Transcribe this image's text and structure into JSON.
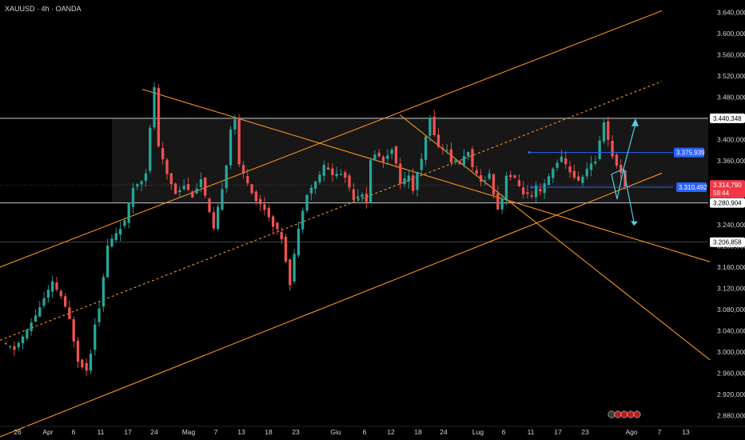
{
  "header": {
    "title": "XAUUSD · 4h · OANDA"
  },
  "colors": {
    "background": "#000000",
    "up": "#26a69a",
    "down": "#ef5350",
    "trendline": "#f7931e",
    "level": "#d1d4dc",
    "blue": "#2962ff",
    "arrow": "#4dd0e1",
    "range_box": "#1a1a1a",
    "price_tag": "#f23645"
  },
  "chart_data": {
    "type": "candlestick",
    "symbol": "XAUUSD",
    "timeframe": "4h",
    "source": "OANDA",
    "ylim": [
      2860,
      3660
    ],
    "y_ticks": [
      "3.640,000",
      "3.600,000",
      "3.560,000",
      "3.520,000",
      "3.480,000",
      "3.400,000",
      "3.360,000",
      "3.240,000",
      "3.200,000",
      "3.160,000",
      "3.120,000",
      "3.080,000",
      "3.040,000",
      "3.000,000",
      "2.960,000",
      "2.920,000",
      "2.880,000"
    ],
    "x_ticks": [
      "26",
      "Apr",
      "6",
      "11",
      "17",
      "24",
      "Mag",
      "7",
      "13",
      "18",
      "23",
      "Giu",
      "6",
      "12",
      "18",
      "24",
      "Lug",
      "6",
      "11",
      "17",
      "23",
      "Ago",
      "7",
      "13"
    ],
    "price_path": [
      [
        0,
        3015
      ],
      [
        3,
        3005
      ],
      [
        6,
        3040
      ],
      [
        9,
        3085
      ],
      [
        12,
        3130
      ],
      [
        14,
        3105
      ],
      [
        16,
        3060
      ],
      [
        17.5,
        2985
      ],
      [
        19,
        2965
      ],
      [
        20,
        3000
      ],
      [
        21,
        3055
      ],
      [
        22,
        3085
      ],
      [
        23,
        3140
      ],
      [
        24,
        3200
      ],
      [
        26,
        3225
      ],
      [
        28,
        3245
      ],
      [
        30,
        3310
      ],
      [
        32,
        3325
      ],
      [
        33.2,
        3340
      ],
      [
        34,
        3420
      ],
      [
        35.2,
        3500
      ],
      [
        36.5,
        3385
      ],
      [
        38,
        3335
      ],
      [
        40,
        3300
      ],
      [
        41.5,
        3315
      ],
      [
        43,
        3295
      ],
      [
        44.5,
        3325
      ],
      [
        46,
        3260
      ],
      [
        47,
        3230
      ],
      [
        48,
        3270
      ],
      [
        49,
        3310
      ],
      [
        50,
        3355
      ],
      [
        51,
        3420
      ],
      [
        52.2,
        3440
      ],
      [
        53.5,
        3350
      ],
      [
        55,
        3320
      ],
      [
        56.5,
        3285
      ],
      [
        58,
        3270
      ],
      [
        59.5,
        3240
      ],
      [
        61,
        3215
      ],
      [
        62.8,
        3130
      ],
      [
        64,
        3185
      ],
      [
        65,
        3230
      ],
      [
        66,
        3270
      ],
      [
        67,
        3300
      ],
      [
        68.5,
        3320
      ],
      [
        70,
        3350
      ],
      [
        71.5,
        3335
      ],
      [
        73,
        3335
      ],
      [
        74,
        3330
      ],
      [
        75.5,
        3290
      ],
      [
        77,
        3300
      ],
      [
        78,
        3280
      ],
      [
        79,
        3360
      ],
      [
        80,
        3375
      ],
      [
        81.5,
        3360
      ],
      [
        83,
        3385
      ],
      [
        84.5,
        3320
      ],
      [
        86,
        3330
      ],
      [
        87,
        3305
      ],
      [
        88,
        3340
      ],
      [
        89,
        3360
      ],
      [
        90,
        3405
      ],
      [
        91,
        3440
      ],
      [
        92.5,
        3385
      ],
      [
        94,
        3380
      ],
      [
        95,
        3360
      ],
      [
        96.5,
        3355
      ],
      [
        98,
        3380
      ],
      [
        99,
        3345
      ],
      [
        100.5,
        3320
      ],
      [
        102,
        3335
      ],
      [
        103,
        3300
      ],
      [
        104,
        3270
      ],
      [
        105.3,
        3290
      ],
      [
        106.5,
        3335
      ],
      [
        108,
        3325
      ],
      [
        109.5,
        3300
      ],
      [
        111,
        3290
      ],
      [
        112,
        3310
      ],
      [
        113,
        3300
      ],
      [
        114.5,
        3330
      ],
      [
        116,
        3360
      ],
      [
        117,
        3365
      ],
      [
        118.5,
        3340
      ],
      [
        120,
        3320
      ],
      [
        121.5,
        3345
      ],
      [
        123,
        3360
      ],
      [
        124,
        3400
      ],
      [
        125,
        3435
      ],
      [
        126.2,
        3400
      ],
      [
        127,
        3370
      ],
      [
        128,
        3350
      ],
      [
        129,
        3340
      ],
      [
        130,
        3315
      ]
    ],
    "levels": [
      {
        "label": "3.440,348",
        "value": 3440.348,
        "color": "#d1d4dc"
      },
      {
        "label": "3.280,904",
        "value": 3280.904,
        "color": "#d1d4dc"
      },
      {
        "label": "3.206,858",
        "value": 3206.858,
        "color": "#d1d4dc"
      },
      {
        "label": "3.375,939",
        "value": 3375.939,
        "color": "#2962ff"
      },
      {
        "label": "3.310,492",
        "value": 3310.492,
        "color": "#2962ff"
      }
    ],
    "current_price": {
      "label": "3.314,790",
      "countdown": "59:44",
      "value": 3314.79
    }
  }
}
